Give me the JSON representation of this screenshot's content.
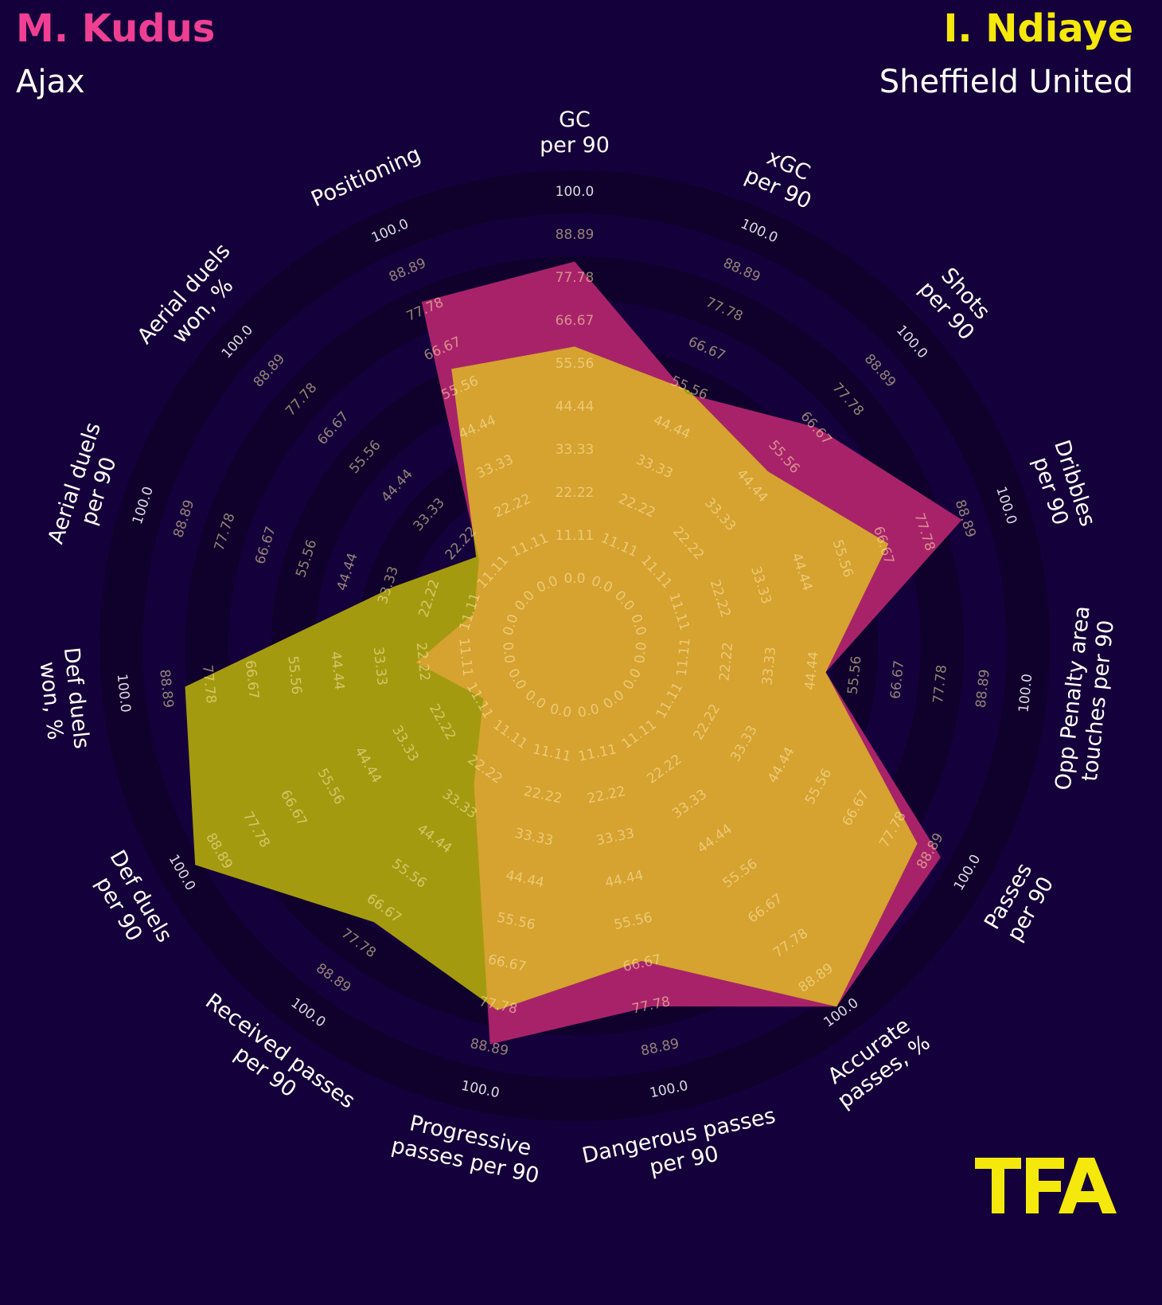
{
  "players": [
    {
      "name": "M. Kudus",
      "team": "Ajax",
      "color": "#ee3f93"
    },
    {
      "name": "I. Ndiaye",
      "team": "Sheffield United",
      "color": "#f4e80c"
    }
  ],
  "logo_text": "TFA",
  "logo_color": "#f4e80c",
  "chart_data": {
    "type": "radar",
    "range": [
      0,
      100
    ],
    "ring_values": [
      "0.0",
      "11.11",
      "22.22",
      "33.33",
      "44.44",
      "55.56",
      "66.67",
      "77.78",
      "88.89",
      "100.0"
    ],
    "axes": [
      [
        "GC",
        "per 90"
      ],
      [
        "xGC",
        "per 90"
      ],
      [
        "Shots",
        "per 90"
      ],
      [
        "Dribbles",
        "per 90"
      ],
      [
        "Opp Penalty area",
        "touches per 90"
      ],
      [
        "Passes",
        "per 90"
      ],
      [
        "Accurate",
        "passes, %"
      ],
      [
        "Dangerous passes",
        "per 90"
      ],
      [
        "Progressive",
        "passes per 90"
      ],
      [
        "Received passes",
        "per 90"
      ],
      [
        "Def duels",
        "per 90"
      ],
      [
        "Def duels",
        "won, %"
      ],
      [
        "Aerial duels",
        "per 90"
      ],
      [
        "Aerial duels",
        "won, %"
      ],
      [
        "Positioning"
      ]
    ],
    "series": [
      {
        "name": "M. Kudus",
        "color": "#a8226a",
        "values": [
          82,
          54,
          67,
          88,
          48,
          92,
          98,
          78,
          88,
          27,
          10,
          24,
          10,
          16,
          80
        ]
      },
      {
        "name": "I. Ndiaye",
        "color": "#a49a10",
        "values": [
          60,
          55,
          50,
          68,
          48,
          85,
          98,
          66,
          79,
          71,
          96,
          84,
          32,
          17,
          61
        ]
      }
    ],
    "overlap_color": "#d6a230"
  }
}
